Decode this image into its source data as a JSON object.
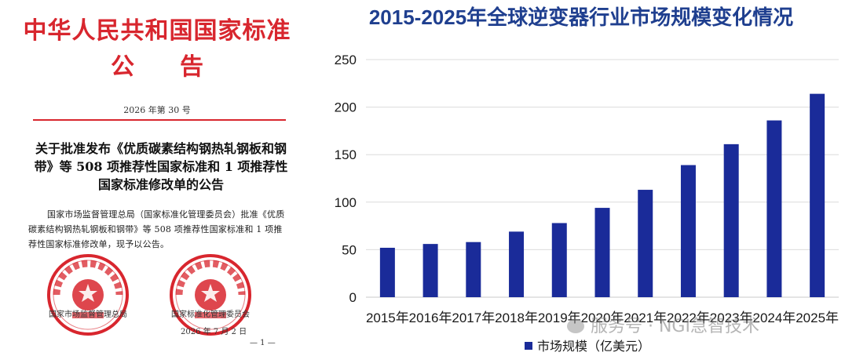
{
  "document": {
    "header_line1": "中华人民共和国国家标准",
    "header_line2": "公告",
    "issue_number": "2026 年第 30 号",
    "title": "关于批准发布《优质碳素结构钢热轧钢板和钢带》等 508 项推荐性国家标准和 1 项推荐性国家标准修改单的公告",
    "body": "国家市场监督管理总局（国家标准化管理委员会）批准《优质碳素结构钢热轧钢板和钢带》等 508 项推荐性国家标准和 1 项推荐性国家标准修改单，现予以公告。",
    "signature_left": "国家市场监督管理总局",
    "signature_right": "国家标准化管理委员会",
    "date": "2026 年 7 月 2 日",
    "page_number": "— 1 —",
    "seal_left_text": "国家市场监督管理总局",
    "seal_right_text": "国家标准化管理委员会",
    "seal_color": "#d8262e"
  },
  "watermark": "服务号 · NGI急智技术",
  "chart_data": {
    "type": "bar",
    "title": "2015-2025年全球逆变器行业市场规模变化情况",
    "categories": [
      "2015年",
      "2016年",
      "2017年",
      "2018年",
      "2019年",
      "2020年",
      "2021年",
      "2022年",
      "2023年",
      "2024年",
      "2025年"
    ],
    "series": [
      {
        "name": "市场规模（亿美元）",
        "values": [
          52,
          56,
          58,
          69,
          78,
          94,
          113,
          139,
          161,
          186,
          214
        ],
        "color": "#1a2b99"
      }
    ],
    "ylim": [
      0,
      250
    ],
    "yticks": [
      0,
      50,
      100,
      150,
      200,
      250
    ],
    "grid": true,
    "legend_position": "bottom"
  }
}
